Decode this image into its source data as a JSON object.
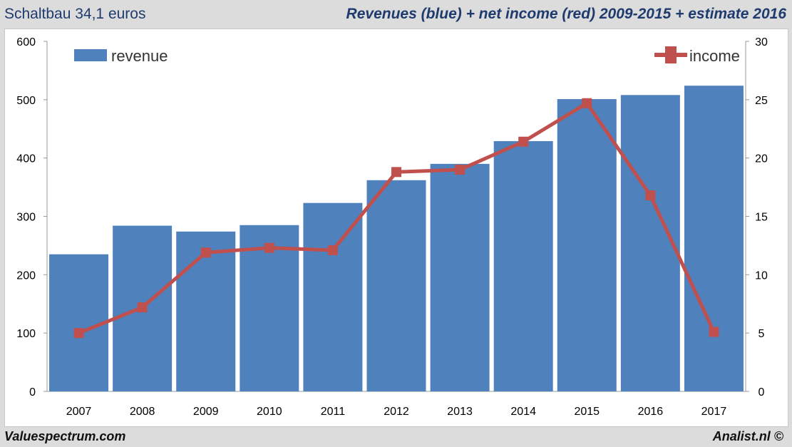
{
  "header": {
    "left": "Schaltbau 34,1 euros",
    "right": "Revenues (blue) + net income (red) 2009-2015 + estimate 2016"
  },
  "footer": {
    "left": "Valuespectrum.com",
    "right": "Analist.nl ©"
  },
  "chart_data": {
    "type": "bar+line",
    "categories": [
      "2007",
      "2008",
      "2009",
      "2010",
      "2011",
      "2012",
      "2013",
      "2014",
      "2015",
      "2016",
      "2017"
    ],
    "series": [
      {
        "name": "revenue",
        "type": "bar",
        "axis": "left",
        "color": "#4f81bd",
        "values": [
          235,
          284,
          274,
          285,
          323,
          362,
          390,
          429,
          501,
          508,
          524
        ]
      },
      {
        "name": "income",
        "type": "line",
        "axis": "right",
        "color": "#c0504d",
        "values": [
          5.0,
          7.2,
          11.9,
          12.3,
          12.1,
          18.8,
          19.0,
          21.4,
          24.7,
          16.8,
          5.1
        ]
      }
    ],
    "ylim_left": [
      0,
      600
    ],
    "yticks_left": [
      0,
      100,
      200,
      300,
      400,
      500,
      600
    ],
    "ylim_right": [
      0,
      30
    ],
    "yticks_right": [
      0,
      5,
      10,
      15,
      20,
      25,
      30
    ],
    "grid": false,
    "legend": {
      "revenue": "top-left",
      "income": "top-right"
    }
  }
}
